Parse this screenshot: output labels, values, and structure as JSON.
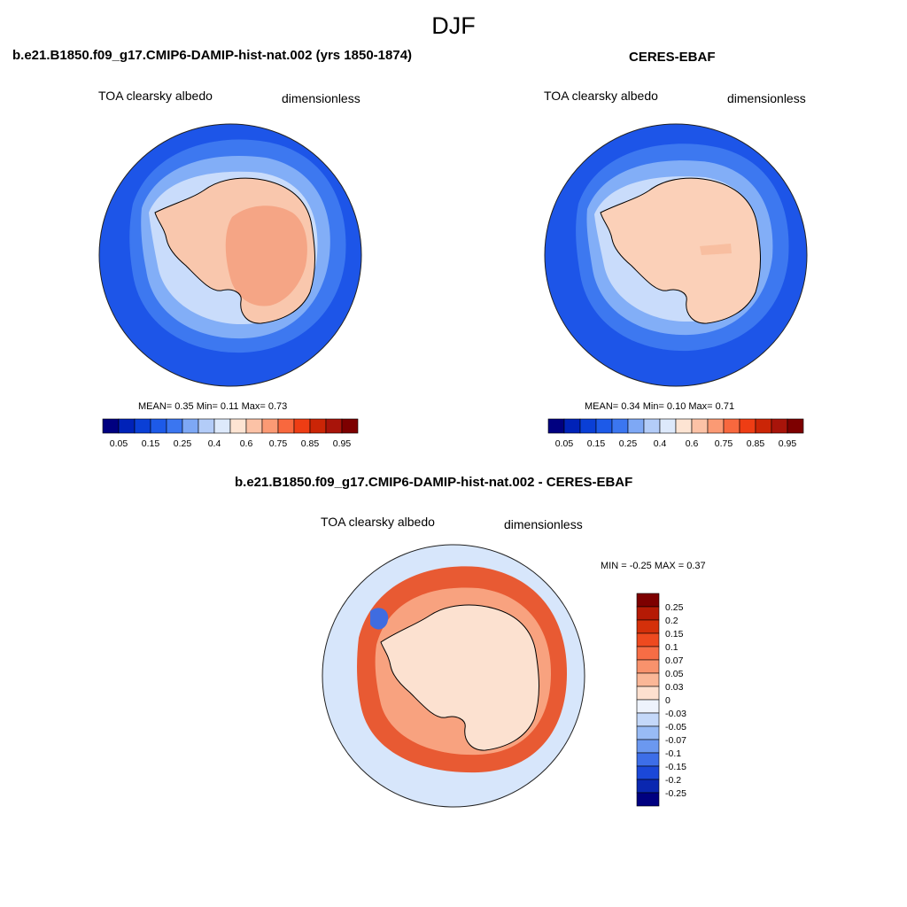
{
  "title": "DJF",
  "panels": [
    {
      "case": "b.e21.B1850.f09_g17.CMIP6-DAMIP-hist-nat.002 (yrs 1850-1874)",
      "variable": "TOA clearsky albedo",
      "units": "dimensionless",
      "stats": {
        "mean": "0.35",
        "min": "0.11",
        "max": "0.73",
        "text": "MEAN=   0.35  Min=    0.11  Max=    0.73"
      },
      "colors": {
        "ocean": "#1d55e8",
        "ring1": "#3d78f0",
        "ring2": "#82aef7",
        "ring3": "#c9dcfb",
        "land": "#f9c7ad",
        "interior": "#f5a585"
      }
    },
    {
      "case": "CERES-EBAF",
      "variable": "TOA clearsky albedo",
      "units": "dimensionless",
      "stats": {
        "mean": "0.34",
        "min": "0.10",
        "max": "0.71",
        "text": "MEAN=   0.34  Min=    0.10  Max=    0.71"
      },
      "colors": {
        "ocean": "#1d55e8",
        "ring1": "#3d78f0",
        "ring2": "#82aef7",
        "ring3": "#c9dcfb",
        "land": "#fbd0b8",
        "interior": "#f8bea0"
      }
    }
  ],
  "colorbar_top": {
    "labels": [
      "0.05",
      "0.15",
      "0.25",
      "0.4",
      "0.6",
      "0.75",
      "0.85",
      "0.95"
    ],
    "colors": [
      "#000080",
      "#0022b8",
      "#0a3fd6",
      "#1d5ae8",
      "#3b76f0",
      "#7ea8f5",
      "#b3ccf8",
      "#dde9fb",
      "#fde4d3",
      "#fcc2a6",
      "#fb9a74",
      "#f8683e",
      "#ee3d14",
      "#cb2506",
      "#a8140a",
      "#7d0000"
    ]
  },
  "diff_panel": {
    "title": "b.e21.B1850.f09_g17.CMIP6-DAMIP-hist-nat.002 - CERES-EBAF",
    "variable": "TOA clearsky albedo",
    "units": "dimensionless",
    "stats": {
      "min": "-0.25",
      "max": "0.37",
      "text": "MIN =  -0.25 MAX =   0.37"
    },
    "colors": {
      "ocean": "#d7e6fb",
      "ring": "#e85a33",
      "ringLight": "#f8a27f",
      "land": "#fce1d0",
      "blue": "#3f6ce0"
    }
  },
  "colorbar_diff": {
    "labels": [
      "0.25",
      "0.2",
      "0.15",
      "0.1",
      "0.07",
      "0.05",
      "0.03",
      "0",
      "-0.03",
      "-0.05",
      "-0.07",
      "-0.1",
      "-0.15",
      "-0.2",
      "-0.25"
    ],
    "colors": [
      "#7d0000",
      "#b51a05",
      "#d4300a",
      "#ee4a1f",
      "#f66d45",
      "#f8926c",
      "#fab797",
      "#fde0cf",
      "#eef3fc",
      "#c4d8f9",
      "#98bbf5",
      "#6b98f0",
      "#3d6ee8",
      "#1b48d8",
      "#0a27b0",
      "#000080"
    ]
  }
}
